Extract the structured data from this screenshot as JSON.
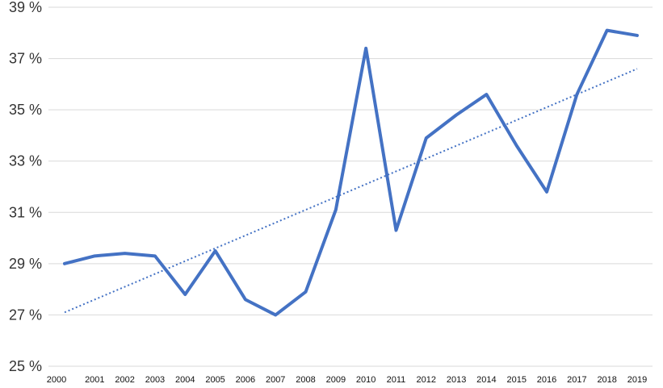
{
  "chart_data": {
    "type": "line",
    "title": "",
    "xlabel": "",
    "ylabel": "",
    "categories": [
      "2000",
      "2001",
      "2002",
      "2003",
      "2004",
      "2005",
      "2006",
      "2007",
      "2008",
      "2009",
      "2010",
      "2011",
      "2012",
      "2013",
      "2014",
      "2015",
      "2016",
      "2017",
      "2018",
      "2019"
    ],
    "ylim": [
      25,
      39
    ],
    "y_ticks": [
      25,
      27,
      29,
      31,
      33,
      35,
      37,
      39
    ],
    "y_tick_labels": [
      "25 %",
      "27 %",
      "29 %",
      "31 %",
      "33 %",
      "35 %",
      "37 %",
      "39 %"
    ],
    "grid": true,
    "legend": "none",
    "series": [
      {
        "values": [
          29.0,
          29.3,
          29.4,
          29.3,
          27.8,
          29.5,
          27.6,
          27.0,
          27.9,
          31.1,
          37.4,
          30.3,
          33.9,
          34.8,
          35.6,
          33.6,
          31.8,
          35.6,
          38.1,
          37.9
        ],
        "color": "#4472c4"
      }
    ],
    "trendline": {
      "type": "linear",
      "start": 27.1,
      "end": 36.6,
      "style": "dotted",
      "color": "#4472c4"
    }
  }
}
